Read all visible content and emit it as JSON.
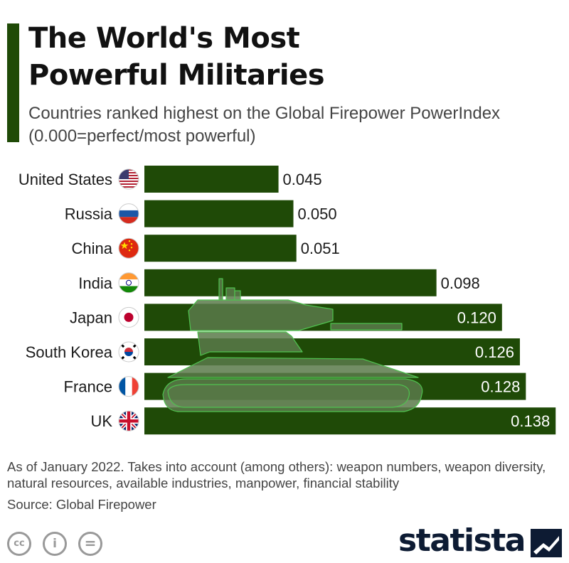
{
  "title": "The World's Most Powerful Militaries",
  "subtitle": "Countries ranked highest on the Global Firepower PowerIndex (0.000=perfect/most powerful)",
  "footnote": "As of January 2022. Takes into account (among others): weapon numbers, weapon diversity, natural resources, available industries, manpower, financial stability",
  "source": "Source: Global Firepower",
  "brand": "statista",
  "colors": {
    "bar": "#1f4a07",
    "accent": "#1f4a07",
    "tank_fill": "#5a7a4a",
    "tank_stroke": "#4fc24f",
    "brand": "#0d1b33"
  },
  "icons": {
    "license": [
      "cc-icon",
      "by-icon",
      "nd-icon"
    ],
    "illustration": "tank-icon",
    "logo": "statista-logo-icon"
  },
  "chart_data": {
    "type": "bar",
    "orientation": "horizontal",
    "categories": [
      "United States",
      "Russia",
      "China",
      "India",
      "Japan",
      "South Korea",
      "France",
      "UK"
    ],
    "flags": [
      "us-flag-icon",
      "russia-flag-icon",
      "china-flag-icon",
      "india-flag-icon",
      "japan-flag-icon",
      "south-korea-flag-icon",
      "france-flag-icon",
      "uk-flag-icon"
    ],
    "values": [
      0.045,
      0.05,
      0.051,
      0.098,
      0.12,
      0.126,
      0.128,
      0.138
    ],
    "value_labels": [
      "0.045",
      "0.050",
      "0.051",
      "0.098",
      "0.120",
      "0.126",
      "0.128",
      "0.138"
    ],
    "xlim": [
      0,
      0.142
    ],
    "grid": false,
    "legend": "none"
  }
}
